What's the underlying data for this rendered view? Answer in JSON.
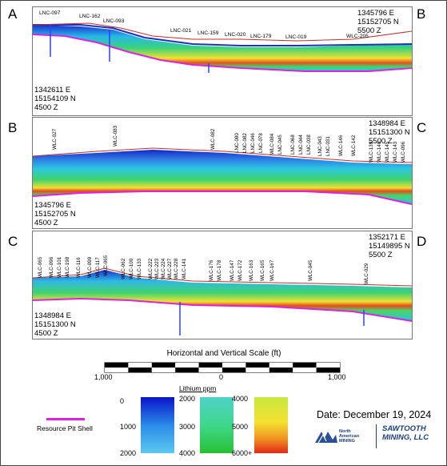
{
  "section_ab": {
    "corner_left": "A",
    "corner_right": "B",
    "coord_left": "1342611 E\n15154109 N\n4500 Z",
    "coord_right": "1345796 E\n15152705 N\n5500 Z",
    "holes": [
      "LNC-097",
      "LNC-162",
      "LNC-093",
      "LNC-021",
      "LNC-159",
      "LNC-020",
      "LNC-179",
      "LNC-019",
      "WLC-205"
    ]
  },
  "section_bc": {
    "corner_left": "B",
    "corner_right": "C",
    "coord_left": "1345796 E\n15152705 N\n4500 Z",
    "coord_right": "1348984 E\n15151300 N\n5500 Z",
    "holes": [
      "WLC-027",
      "WLC-083",
      "WLC-082",
      "LNC-080",
      "LNC-082",
      "LNC-046",
      "LNC-078",
      "WLC-084",
      "LNC-045",
      "LNC-068",
      "LNC-044",
      "LNC-038",
      "LNC-043",
      "LNC-031",
      "WLC-146",
      "WLC-142",
      "WLC-139",
      "WLC-140",
      "WLC-145",
      "WLC-143",
      "WLC-096"
    ]
  },
  "section_cd": {
    "corner_left": "C",
    "corner_right": "D",
    "coord_left": "1348984 E\n15151300 N\n4500 Z",
    "coord_right": "1352171 E\n15149895 N\n5500 Z",
    "holes": [
      "WLC-065",
      "WLC-096",
      "WLC-101",
      "WLC-198",
      "WLC-116",
      "WLC-099",
      "WLC-117",
      "WLC-065",
      "WLC-062",
      "WLC-100",
      "WLC-133",
      "WLC-222",
      "WLC-223",
      "WLC-224",
      "WLC-227",
      "WLC-228",
      "WLC-141",
      "WLC-176",
      "WLC-178",
      "WLC-147",
      "WLC-172",
      "WLC-163",
      "WLC-165",
      "WLC-167",
      "WLC-045",
      "WLC-029"
    ]
  },
  "scale": {
    "title": "Horizontal and Vertical Scale (ft)",
    "left_label": "1,000",
    "center_label": "0",
    "right_label": "1,000"
  },
  "legend": {
    "title": "Lithium ppm",
    "blue_labels": [
      "0",
      "1000",
      "2000"
    ],
    "green_labels": [
      "2000",
      "3000",
      "4000"
    ],
    "yellow_labels": [
      "4000",
      "5000",
      "6000+"
    ],
    "pit_shell_label": "Resource Pit Shell",
    "pit_shell_color": "#e020e0"
  },
  "date": "Date: December 19, 2024",
  "logos": {
    "north_american": "North\nAmerican\nMINING",
    "sawtooth": "SAWTOOTH\nMINING, LLC"
  }
}
